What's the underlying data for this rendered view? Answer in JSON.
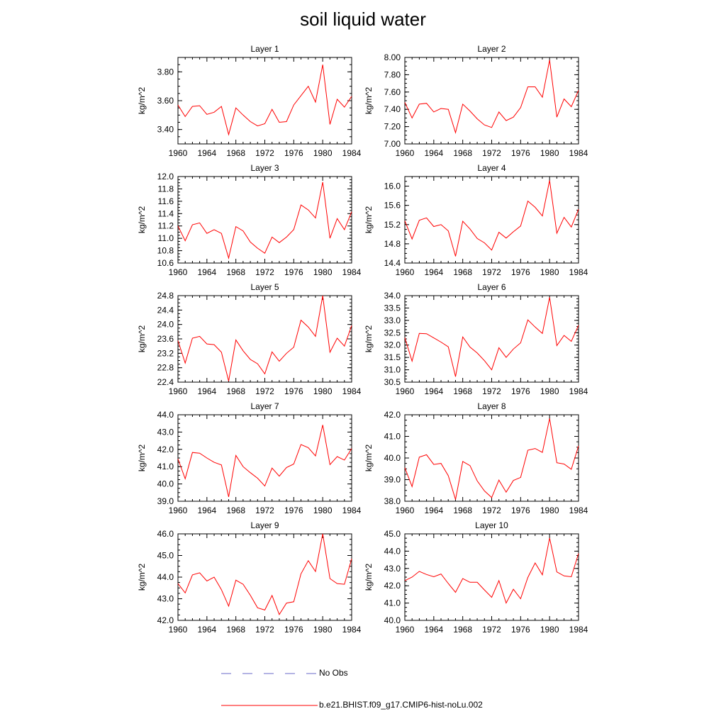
{
  "title": "soil liquid water",
  "legend": [
    {
      "label": "No Obs",
      "color": "#6a6ac8",
      "style": "dashed"
    },
    {
      "label": "b.e21.BHIST.f09_g17.CMIP6-hist-noLu.002",
      "color": "#ff0000",
      "style": "solid"
    }
  ],
  "chart_data": [
    {
      "type": "line",
      "title": "Layer 1",
      "ylabel": "kg/m^2",
      "xlim": [
        1960,
        1984
      ],
      "ylim": [
        3.3,
        3.9
      ],
      "xticks": [
        "1960",
        "1964",
        "1968",
        "1972",
        "1976",
        "1980",
        "1984"
      ],
      "yticks": [
        "3.40",
        "3.60",
        "3.80"
      ],
      "color": "#ff0000",
      "x": [
        1960,
        1961,
        1962,
        1963,
        1964,
        1965,
        1966,
        1967,
        1968,
        1969,
        1970,
        1971,
        1972,
        1973,
        1974,
        1975,
        1976,
        1977,
        1978,
        1979,
        1980,
        1981,
        1982,
        1983,
        1984
      ],
      "y": [
        3.57,
        3.49,
        3.56,
        3.565,
        3.505,
        3.52,
        3.56,
        3.365,
        3.55,
        3.5,
        3.455,
        3.425,
        3.44,
        3.54,
        3.45,
        3.455,
        3.57,
        3.635,
        3.7,
        3.59,
        3.85,
        3.435,
        3.61,
        3.555,
        3.63
      ]
    },
    {
      "type": "line",
      "title": "Layer 2",
      "ylabel": "kg/m^2",
      "xlim": [
        1960,
        1984
      ],
      "ylim": [
        7.0,
        8.0
      ],
      "xticks": [
        "1960",
        "1964",
        "1968",
        "1972",
        "1976",
        "1980",
        "1984"
      ],
      "yticks": [
        "7.00",
        "7.20",
        "7.40",
        "7.60",
        "7.80",
        "8.00"
      ],
      "color": "#ff0000",
      "x": [
        1960,
        1961,
        1962,
        1963,
        1964,
        1965,
        1966,
        1967,
        1968,
        1969,
        1970,
        1971,
        1972,
        1973,
        1974,
        1975,
        1976,
        1977,
        1978,
        1979,
        1980,
        1981,
        1982,
        1983,
        1984
      ],
      "y": [
        7.48,
        7.3,
        7.46,
        7.47,
        7.37,
        7.41,
        7.4,
        7.13,
        7.46,
        7.38,
        7.29,
        7.22,
        7.19,
        7.37,
        7.27,
        7.31,
        7.42,
        7.66,
        7.66,
        7.54,
        7.97,
        7.31,
        7.52,
        7.43,
        7.62
      ]
    },
    {
      "type": "line",
      "title": "Layer 3",
      "ylabel": "kg/m^2",
      "xlim": [
        1960,
        1984
      ],
      "ylim": [
        10.6,
        12.0
      ],
      "xticks": [
        "1960",
        "1964",
        "1968",
        "1972",
        "1976",
        "1980",
        "1984"
      ],
      "yticks": [
        "10.6",
        "10.8",
        "11.0",
        "11.2",
        "11.4",
        "11.6",
        "11.8",
        "12.0"
      ],
      "color": "#ff0000",
      "x": [
        1960,
        1961,
        1962,
        1963,
        1964,
        1965,
        1966,
        1967,
        1968,
        1969,
        1970,
        1971,
        1972,
        1973,
        1974,
        1975,
        1976,
        1977,
        1978,
        1979,
        1980,
        1981,
        1982,
        1983,
        1984
      ],
      "y": [
        11.2,
        10.96,
        11.22,
        11.25,
        11.08,
        11.14,
        11.08,
        10.68,
        11.19,
        11.12,
        10.94,
        10.84,
        10.76,
        11.02,
        10.93,
        11.02,
        11.14,
        11.54,
        11.46,
        11.33,
        11.91,
        11.0,
        11.32,
        11.14,
        11.43
      ]
    },
    {
      "type": "line",
      "title": "Layer 4",
      "ylabel": "kg/m^2",
      "xlim": [
        1960,
        1984
      ],
      "ylim": [
        14.4,
        16.2
      ],
      "xticks": [
        "1960",
        "1964",
        "1968",
        "1972",
        "1976",
        "1980",
        "1984"
      ],
      "yticks": [
        "14.4",
        "14.8",
        "15.2",
        "15.6",
        "16.0"
      ],
      "color": "#ff0000",
      "x": [
        1960,
        1961,
        1962,
        1963,
        1964,
        1965,
        1966,
        1967,
        1968,
        1969,
        1970,
        1971,
        1972,
        1973,
        1974,
        1975,
        1976,
        1977,
        1978,
        1979,
        1980,
        1981,
        1982,
        1983,
        1984
      ],
      "y": [
        15.28,
        14.9,
        15.29,
        15.34,
        15.16,
        15.2,
        15.07,
        14.54,
        15.27,
        15.11,
        14.91,
        14.82,
        14.67,
        15.04,
        14.92,
        15.05,
        15.17,
        15.69,
        15.56,
        15.38,
        16.12,
        15.02,
        15.35,
        15.15,
        15.52
      ]
    },
    {
      "type": "line",
      "title": "Layer 5",
      "ylabel": "kg/m^2",
      "xlim": [
        1960,
        1984
      ],
      "ylim": [
        22.4,
        24.8
      ],
      "xticks": [
        "1960",
        "1964",
        "1968",
        "1972",
        "1976",
        "1980",
        "1984"
      ],
      "yticks": [
        "22.4",
        "22.8",
        "23.2",
        "23.6",
        "24.0",
        "24.4",
        "24.8"
      ],
      "color": "#ff0000",
      "x": [
        1960,
        1961,
        1962,
        1963,
        1964,
        1965,
        1966,
        1967,
        1968,
        1969,
        1970,
        1971,
        1972,
        1973,
        1974,
        1975,
        1976,
        1977,
        1978,
        1979,
        1980,
        1981,
        1982,
        1983,
        1984
      ],
      "y": [
        23.55,
        22.93,
        23.62,
        23.67,
        23.46,
        23.44,
        23.23,
        22.43,
        23.57,
        23.27,
        23.03,
        22.91,
        22.63,
        23.24,
        22.98,
        23.2,
        23.37,
        24.12,
        23.93,
        23.67,
        24.8,
        23.23,
        23.62,
        23.4,
        23.97
      ]
    },
    {
      "type": "line",
      "title": "Layer 6",
      "ylabel": "kg/m^2",
      "xlim": [
        1960,
        1984
      ],
      "ylim": [
        30.5,
        34.0
      ],
      "xticks": [
        "1960",
        "1964",
        "1968",
        "1972",
        "1976",
        "1980",
        "1984"
      ],
      "yticks": [
        "30.5",
        "31.0",
        "31.5",
        "32.0",
        "32.5",
        "33.0",
        "33.5",
        "34.0"
      ],
      "color": "#ff0000",
      "x": [
        1960,
        1961,
        1962,
        1963,
        1964,
        1965,
        1966,
        1967,
        1968,
        1969,
        1970,
        1971,
        1972,
        1973,
        1974,
        1975,
        1976,
        1977,
        1978,
        1979,
        1980,
        1981,
        1982,
        1983,
        1984
      ],
      "y": [
        32.3,
        31.35,
        32.47,
        32.46,
        32.29,
        32.12,
        31.93,
        30.72,
        32.33,
        31.92,
        31.68,
        31.37,
        31.0,
        31.89,
        31.5,
        31.84,
        32.09,
        33.02,
        32.73,
        32.47,
        33.93,
        31.98,
        32.39,
        32.15,
        32.8
      ]
    },
    {
      "type": "line",
      "title": "Layer 7",
      "ylabel": "kg/m^2",
      "xlim": [
        1960,
        1984
      ],
      "ylim": [
        39.0,
        44.0
      ],
      "xticks": [
        "1960",
        "1964",
        "1968",
        "1972",
        "1976",
        "1980",
        "1984"
      ],
      "yticks": [
        "39.0",
        "40.0",
        "41.0",
        "42.0",
        "43.0",
        "44.0"
      ],
      "color": "#ff0000",
      "x": [
        1960,
        1961,
        1962,
        1963,
        1964,
        1965,
        1966,
        1967,
        1968,
        1969,
        1970,
        1971,
        1972,
        1973,
        1974,
        1975,
        1976,
        1977,
        1978,
        1979,
        1980,
        1981,
        1982,
        1983,
        1984
      ],
      "y": [
        41.45,
        40.3,
        41.82,
        41.78,
        41.5,
        41.25,
        41.1,
        39.25,
        41.65,
        41.0,
        40.65,
        40.33,
        39.88,
        40.92,
        40.45,
        40.95,
        41.15,
        42.28,
        42.1,
        41.62,
        43.41,
        41.12,
        41.58,
        41.38,
        42.05
      ]
    },
    {
      "type": "line",
      "title": "Layer 8",
      "ylabel": "kg/m^2",
      "xlim": [
        1960,
        1984
      ],
      "ylim": [
        38.0,
        42.0
      ],
      "xticks": [
        "1960",
        "1964",
        "1968",
        "1972",
        "1976",
        "1980",
        "1984"
      ],
      "yticks": [
        "38.0",
        "39.0",
        "40.0",
        "41.0",
        "42.0"
      ],
      "color": "#ff0000",
      "x": [
        1960,
        1961,
        1962,
        1963,
        1964,
        1965,
        1966,
        1967,
        1968,
        1969,
        1970,
        1971,
        1972,
        1973,
        1974,
        1975,
        1976,
        1977,
        1978,
        1979,
        1980,
        1981,
        1982,
        1983,
        1984
      ],
      "y": [
        39.55,
        38.68,
        40.04,
        40.15,
        39.7,
        39.75,
        39.18,
        38.08,
        39.84,
        39.65,
        38.94,
        38.48,
        38.17,
        38.98,
        38.42,
        38.96,
        39.1,
        40.36,
        40.44,
        40.26,
        41.83,
        39.78,
        39.72,
        39.48,
        40.56
      ]
    },
    {
      "type": "line",
      "title": "Layer 9",
      "ylabel": "kg/m^2",
      "xlim": [
        1960,
        1984
      ],
      "ylim": [
        42.0,
        46.0
      ],
      "xticks": [
        "1960",
        "1964",
        "1968",
        "1972",
        "1976",
        "1980",
        "1984"
      ],
      "yticks": [
        "42.0",
        "43.0",
        "44.0",
        "45.0",
        "46.0"
      ],
      "color": "#ff0000",
      "x": [
        1960,
        1961,
        1962,
        1963,
        1964,
        1965,
        1966,
        1967,
        1968,
        1969,
        1970,
        1971,
        1972,
        1973,
        1974,
        1975,
        1976,
        1977,
        1978,
        1979,
        1980,
        1981,
        1982,
        1983,
        1984
      ],
      "y": [
        43.7,
        43.27,
        44.1,
        44.2,
        43.82,
        44.0,
        43.42,
        42.66,
        43.86,
        43.67,
        43.16,
        42.58,
        42.48,
        43.15,
        42.27,
        42.8,
        42.86,
        44.15,
        44.76,
        44.26,
        46.0,
        43.93,
        43.7,
        43.67,
        44.85
      ]
    },
    {
      "type": "line",
      "title": "Layer 10",
      "ylabel": "kg/m^2",
      "xlim": [
        1960,
        1984
      ],
      "ylim": [
        40.0,
        45.0
      ],
      "xticks": [
        "1960",
        "1964",
        "1968",
        "1972",
        "1976",
        "1980",
        "1984"
      ],
      "yticks": [
        "40.0",
        "41.0",
        "42.0",
        "43.0",
        "44.0",
        "45.0"
      ],
      "color": "#ff0000",
      "x": [
        1960,
        1961,
        1962,
        1963,
        1964,
        1965,
        1966,
        1967,
        1968,
        1969,
        1970,
        1971,
        1972,
        1973,
        1974,
        1975,
        1976,
        1977,
        1978,
        1979,
        1980,
        1981,
        1982,
        1983,
        1984
      ],
      "y": [
        42.3,
        42.5,
        42.83,
        42.65,
        42.52,
        42.68,
        42.13,
        41.62,
        42.42,
        42.2,
        42.2,
        41.76,
        41.33,
        42.3,
        41.0,
        41.8,
        41.25,
        42.48,
        43.32,
        42.63,
        44.76,
        42.8,
        42.57,
        42.52,
        43.87
      ]
    }
  ]
}
